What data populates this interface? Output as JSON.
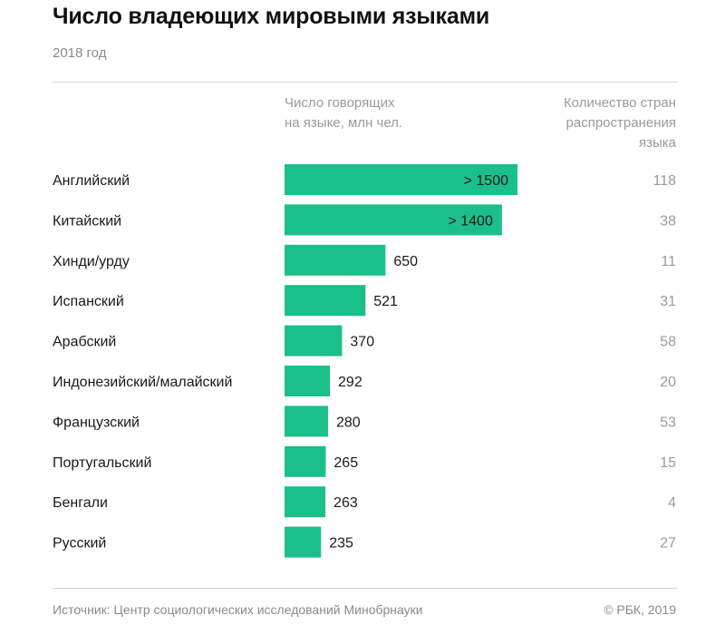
{
  "title": "Число владеющих мировыми языками",
  "subtitle": "2018 год",
  "columns": {
    "speakers": "Число говорящих\nна языке, млн чел.",
    "countries": "Количество стран\nраспространения\nязыка"
  },
  "footer": {
    "source": "Источник: Центр социологических исследований Минобрнауки",
    "copyright": "© РБК, 2019"
  },
  "colors": {
    "bar": "#1bbf8a",
    "label_inside": "#1a1a1a",
    "country_text": "#9a9a9a"
  },
  "chart_data": {
    "type": "bar",
    "orientation": "horizontal",
    "categories": [
      "Английский",
      "Китайский",
      "Хинди/урду",
      "Испанский",
      "Арабский",
      "Индонезийский/малайский",
      "Французский",
      "Португальский",
      "Бенгали",
      "Русский"
    ],
    "series": [
      {
        "values": [
          1500,
          1400,
          650,
          521,
          370,
          292,
          280,
          265,
          263,
          235
        ],
        "labels": [
          "> 1500",
          "> 1400",
          "650",
          "521",
          "370",
          "292",
          "280",
          "265",
          "263",
          "235"
        ]
      }
    ],
    "countries": [
      118,
      38,
      11,
      31,
      58,
      20,
      53,
      15,
      4,
      27
    ],
    "xlim": [
      0,
      1500
    ],
    "grid": false,
    "legend": "none"
  }
}
